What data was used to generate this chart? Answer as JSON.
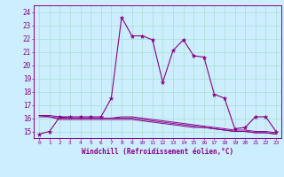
{
  "xlabel": "Windchill (Refroidissement éolien,°C)",
  "hours": [
    0,
    1,
    2,
    3,
    4,
    5,
    6,
    7,
    8,
    9,
    10,
    11,
    12,
    13,
    14,
    15,
    16,
    17,
    18,
    19,
    20,
    21,
    22,
    23
  ],
  "windchill": [
    14.8,
    15.0,
    16.1,
    16.1,
    16.1,
    16.1,
    16.1,
    17.5,
    23.6,
    22.2,
    22.2,
    21.9,
    18.7,
    21.1,
    21.9,
    20.7,
    20.6,
    17.8,
    17.5,
    15.2,
    15.3,
    16.1,
    16.1,
    15.0
  ],
  "line1": [
    16.1,
    16.1,
    15.9,
    15.9,
    15.9,
    15.9,
    15.9,
    15.9,
    15.9,
    15.9,
    15.8,
    15.7,
    15.6,
    15.5,
    15.4,
    15.3,
    15.3,
    15.2,
    15.1,
    15.0,
    15.0,
    14.9,
    14.9,
    14.8
  ],
  "line2": [
    16.2,
    16.1,
    16.0,
    16.0,
    16.0,
    16.0,
    16.0,
    16.0,
    16.0,
    16.0,
    15.9,
    15.8,
    15.7,
    15.6,
    15.5,
    15.4,
    15.3,
    15.2,
    15.1,
    15.0,
    15.0,
    14.9,
    14.9,
    14.8
  ],
  "line3": [
    16.2,
    16.2,
    16.1,
    16.0,
    16.0,
    16.0,
    16.0,
    16.0,
    16.1,
    16.1,
    16.0,
    15.9,
    15.8,
    15.7,
    15.6,
    15.5,
    15.4,
    15.3,
    15.2,
    15.1,
    15.1,
    15.0,
    15.0,
    14.9
  ],
  "bg_color": "#cceeff",
  "grid_color": "#aaddcc",
  "line_color": "#880088",
  "ylim_min": 14.5,
  "ylim_max": 24.5,
  "yticks": [
    15,
    16,
    17,
    18,
    19,
    20,
    21,
    22,
    23,
    24
  ]
}
